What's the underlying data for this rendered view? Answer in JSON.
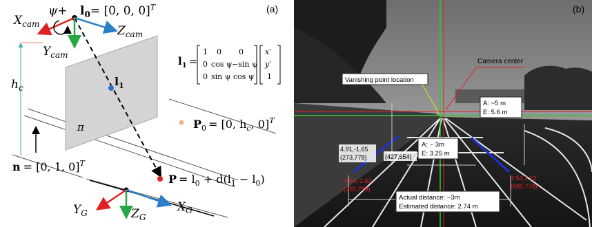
{
  "panel_a": {
    "label": "(a)",
    "x_cam": "X",
    "x_cam_sub": "cam",
    "z_cam": "Z",
    "z_cam_sub": "cam",
    "y_cam": "Y",
    "y_cam_sub": "cam",
    "psi": "ψ+",
    "l0_label": "l",
    "l0_sub": "0",
    "l0_value": "= [0, 0, 0]",
    "transpose": "T",
    "hc": "h",
    "hc_sub": "c",
    "l1_label": "l",
    "l1_sub": "1",
    "pi": "π",
    "P0_label": "P",
    "P0_sub": "0",
    "P0_value": "= [0, h",
    "P0_value_sub": "c",
    "P0_value_end": ", 0]",
    "n_label": "n",
    "n_value": "= [0, 1, 0]",
    "P_label": "P",
    "P_value": "= l",
    "P_value_rest": " + d(l",
    "P_value_sub1": "1",
    "P_value_minus": " − l",
    "P_value_end": ")",
    "y_g": "Y",
    "z_g": "Z",
    "x_g": "X",
    "g_sub": "G",
    "eq_lhs": "l",
    "eq_lhs_sub": "1",
    "matrix_rows": [
      [
        "1",
        "0",
        "0"
      ],
      [
        "0",
        "cos ψ",
        "−sin ψ"
      ],
      [
        "0",
        "sin ψ",
        "cos ψ"
      ]
    ],
    "vector": [
      "x′",
      "y′",
      "1"
    ]
  },
  "panel_b": {
    "label": "(b)",
    "vanishing_point_label": "Vanishing point location",
    "camera_center_label": "Camera center",
    "box_5m": [
      "A: ~5 m",
      "E: 5.6 m"
    ],
    "box_3m": [
      "A: ~ 3m",
      "E: 3.25 m"
    ],
    "box_bottom": [
      "Actual distance: ~3m",
      "Estimated distance: 2.74 m"
    ],
    "black_annotations": [
      [
        "4.91,-1.65",
        "(273,778)"
      ],
      [
        "",
        "(427,654)"
      ]
    ],
    "red_annotations": [
      [
        "4.64,-1.62",
        "(255,780)"
      ],
      [
        "4.54,1.12",
        "(685,778)"
      ]
    ],
    "colors": {
      "horizon_green": "#2ecc2e",
      "red_line": "#e02020",
      "lane_blue": "#2030d0",
      "arrow_red": "#e02020",
      "arrow_blue": "#2a7fc9",
      "arrow_green": "#27a844",
      "point_orange": "#f4b183"
    }
  }
}
